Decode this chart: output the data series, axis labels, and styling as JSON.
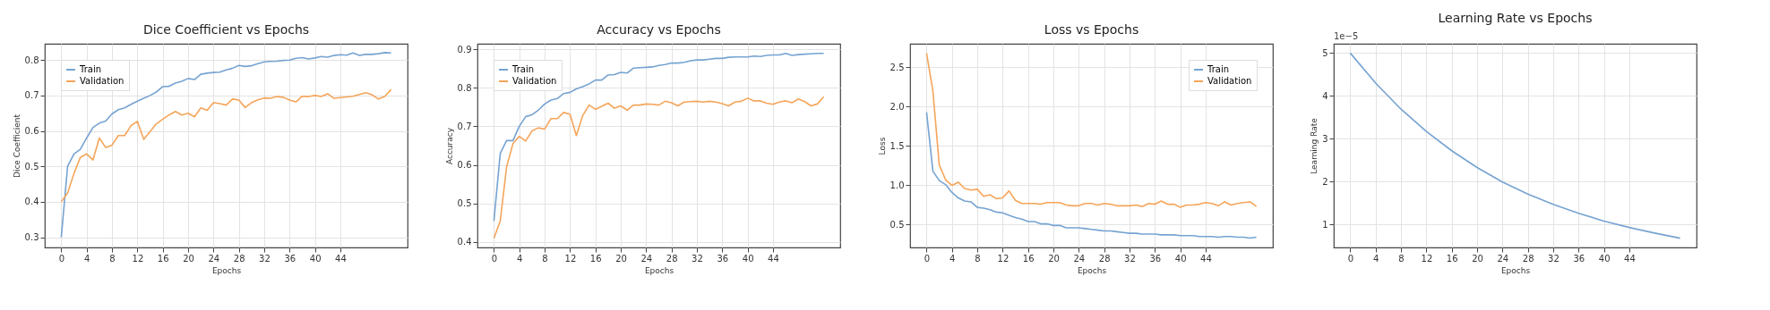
{
  "chart_data": [
    {
      "type": "line",
      "title": "Dice Coefficient vs Epochs",
      "xlabel": "Epochs",
      "ylabel": "Dice Coefficient",
      "x": [
        0,
        1,
        2,
        3,
        4,
        5,
        6,
        7,
        8,
        9,
        10,
        11,
        12,
        13,
        14,
        15,
        16,
        17,
        18,
        19,
        20,
        21,
        22,
        23,
        24,
        25,
        26,
        27,
        28,
        29,
        30,
        31,
        32,
        33,
        34,
        35,
        36,
        37,
        38,
        39,
        40,
        41,
        42,
        43,
        44,
        45,
        46,
        47,
        48,
        49,
        50,
        51,
        52
      ],
      "xlim": [
        -2.6,
        54.6
      ],
      "xticks": [
        0,
        4,
        8,
        12,
        16,
        20,
        24,
        28,
        32,
        36,
        40,
        44
      ],
      "ylim": [
        0.271,
        0.846
      ],
      "yticks": [
        0.3,
        0.4,
        0.5,
        0.6,
        0.7,
        0.8
      ],
      "grid": true,
      "legend": "top left",
      "series": [
        {
          "name": "Train",
          "color": "#76a3d2",
          "values": [
            0.3,
            0.5,
            0.535,
            0.548,
            0.58,
            0.61,
            0.622,
            0.628,
            0.648,
            0.66,
            0.665,
            0.675,
            0.684,
            0.692,
            0.7,
            0.71,
            0.725,
            0.726,
            0.735,
            0.74,
            0.748,
            0.745,
            0.76,
            0.763,
            0.765,
            0.766,
            0.772,
            0.777,
            0.785,
            0.782,
            0.784,
            0.79,
            0.795,
            0.796,
            0.797,
            0.799,
            0.8,
            0.805,
            0.807,
            0.803,
            0.806,
            0.81,
            0.808,
            0.813,
            0.815,
            0.814,
            0.82,
            0.813,
            0.816,
            0.816,
            0.818,
            0.821,
            0.82
          ]
        },
        {
          "name": "Validation",
          "color": "#f5a55a",
          "values": [
            0.4,
            0.425,
            0.48,
            0.525,
            0.535,
            0.518,
            0.58,
            0.553,
            0.56,
            0.587,
            0.587,
            0.615,
            0.627,
            0.576,
            0.598,
            0.62,
            0.633,
            0.645,
            0.655,
            0.645,
            0.65,
            0.64,
            0.665,
            0.658,
            0.68,
            0.677,
            0.673,
            0.69,
            0.687,
            0.666,
            0.68,
            0.688,
            0.693,
            0.692,
            0.697,
            0.695,
            0.687,
            0.682,
            0.698,
            0.697,
            0.7,
            0.697,
            0.705,
            0.692,
            0.694,
            0.696,
            0.698,
            0.703,
            0.708,
            0.702,
            0.69,
            0.697,
            0.717
          ]
        }
      ]
    },
    {
      "type": "line",
      "title": "Accuracy vs Epochs",
      "xlabel": "Epochs",
      "ylabel": "Accuracy",
      "x": [
        0,
        1,
        2,
        3,
        4,
        5,
        6,
        7,
        8,
        9,
        10,
        11,
        12,
        13,
        14,
        15,
        16,
        17,
        18,
        19,
        20,
        21,
        22,
        23,
        24,
        25,
        26,
        27,
        28,
        29,
        30,
        31,
        32,
        33,
        34,
        35,
        36,
        37,
        38,
        39,
        40,
        41,
        42,
        43,
        44,
        45,
        46,
        47,
        48,
        49,
        50,
        51,
        52
      ],
      "xlim": [
        -2.6,
        54.6
      ],
      "xticks": [
        0,
        4,
        8,
        12,
        16,
        20,
        24,
        28,
        32,
        36,
        40,
        44
      ],
      "ylim": [
        0.386,
        0.914
      ],
      "yticks": [
        0.4,
        0.5,
        0.6,
        0.7,
        0.8,
        0.9
      ],
      "grid": true,
      "legend": "top left",
      "series": [
        {
          "name": "Train",
          "color": "#76a3d2",
          "values": [
            0.455,
            0.63,
            0.663,
            0.663,
            0.7,
            0.725,
            0.73,
            0.742,
            0.758,
            0.768,
            0.772,
            0.785,
            0.788,
            0.797,
            0.803,
            0.81,
            0.82,
            0.82,
            0.833,
            0.834,
            0.84,
            0.838,
            0.851,
            0.852,
            0.853,
            0.854,
            0.858,
            0.86,
            0.864,
            0.864,
            0.866,
            0.87,
            0.872,
            0.872,
            0.874,
            0.876,
            0.876,
            0.879,
            0.88,
            0.88,
            0.88,
            0.882,
            0.881,
            0.884,
            0.885,
            0.885,
            0.889,
            0.884,
            0.886,
            0.887,
            0.888,
            0.889,
            0.889
          ]
        },
        {
          "name": "Validation",
          "color": "#f5a55a",
          "values": [
            0.41,
            0.455,
            0.595,
            0.655,
            0.674,
            0.662,
            0.688,
            0.696,
            0.693,
            0.72,
            0.72,
            0.736,
            0.731,
            0.676,
            0.728,
            0.755,
            0.744,
            0.752,
            0.76,
            0.747,
            0.753,
            0.742,
            0.755,
            0.755,
            0.758,
            0.757,
            0.755,
            0.765,
            0.761,
            0.753,
            0.763,
            0.764,
            0.765,
            0.763,
            0.765,
            0.763,
            0.759,
            0.753,
            0.763,
            0.765,
            0.773,
            0.766,
            0.766,
            0.76,
            0.757,
            0.763,
            0.766,
            0.761,
            0.771,
            0.764,
            0.753,
            0.758,
            0.777
          ]
        }
      ]
    },
    {
      "type": "line",
      "title": "Loss vs Epochs",
      "xlabel": "Epochs",
      "ylabel": "Loss",
      "x": [
        0,
        1,
        2,
        3,
        4,
        5,
        6,
        7,
        8,
        9,
        10,
        11,
        12,
        13,
        14,
        15,
        16,
        17,
        18,
        19,
        20,
        21,
        22,
        23,
        24,
        25,
        26,
        27,
        28,
        29,
        30,
        31,
        32,
        33,
        34,
        35,
        36,
        37,
        38,
        39,
        40,
        41,
        42,
        43,
        44,
        45,
        46,
        47,
        48,
        49,
        50,
        51,
        52
      ],
      "xlim": [
        -2.6,
        54.6
      ],
      "xticks": [
        0,
        4,
        8,
        12,
        16,
        20,
        24,
        28,
        32,
        36,
        40,
        44
      ],
      "ylim": [
        0.21,
        2.8
      ],
      "yticks": [
        0.5,
        {
          "value": 1,
          "label": "1.0"
        },
        1.5,
        {
          "value": 2,
          "label": "2.0"
        },
        2.5
      ],
      "grid": true,
      "legend": "top right",
      "series": [
        {
          "name": "Train",
          "color": "#76a3d2",
          "values": [
            1.93,
            1.18,
            1.06,
            1.01,
            0.91,
            0.84,
            0.8,
            0.79,
            0.72,
            0.71,
            0.69,
            0.66,
            0.65,
            0.62,
            0.59,
            0.57,
            0.54,
            0.54,
            0.51,
            0.51,
            0.49,
            0.49,
            0.46,
            0.46,
            0.46,
            0.45,
            0.44,
            0.43,
            0.42,
            0.42,
            0.41,
            0.4,
            0.39,
            0.39,
            0.38,
            0.38,
            0.38,
            0.37,
            0.37,
            0.37,
            0.36,
            0.36,
            0.36,
            0.35,
            0.35,
            0.35,
            0.34,
            0.35,
            0.35,
            0.34,
            0.34,
            0.33,
            0.34
          ]
        },
        {
          "name": "Validation",
          "color": "#f5a55a",
          "values": [
            2.68,
            2.2,
            1.26,
            1.07,
            1.0,
            1.04,
            0.96,
            0.94,
            0.95,
            0.86,
            0.88,
            0.83,
            0.84,
            0.93,
            0.81,
            0.77,
            0.77,
            0.77,
            0.76,
            0.78,
            0.78,
            0.78,
            0.75,
            0.74,
            0.74,
            0.77,
            0.77,
            0.75,
            0.77,
            0.76,
            0.74,
            0.74,
            0.74,
            0.75,
            0.73,
            0.77,
            0.76,
            0.8,
            0.76,
            0.76,
            0.72,
            0.75,
            0.75,
            0.76,
            0.78,
            0.77,
            0.74,
            0.79,
            0.75,
            0.77,
            0.78,
            0.79,
            0.73
          ]
        }
      ]
    },
    {
      "type": "line",
      "title": "Learning Rate vs Epochs",
      "xlabel": "Epochs",
      "ylabel": "Learning Rate",
      "annotations": [
        "1e−5"
      ],
      "xlim": [
        -2.6,
        54.6
      ],
      "xticks": [
        0,
        4,
        8,
        12,
        16,
        20,
        24,
        28,
        32,
        36,
        40,
        44
      ],
      "ylim": [
        0.464,
        5.216
      ],
      "yticks": [
        1,
        2,
        3,
        4,
        5
      ],
      "grid": true,
      "series": [
        {
          "color": "#76a3d2",
          "x": [
            0,
            4,
            8,
            12,
            16,
            20,
            24,
            28,
            32,
            36,
            40,
            44,
            48,
            52
          ],
          "values": [
            5.0,
            4.3,
            3.69,
            3.17,
            2.72,
            2.33,
            1.99,
            1.71,
            1.47,
            1.26,
            1.08,
            0.93,
            0.8,
            0.68
          ]
        }
      ]
    }
  ]
}
